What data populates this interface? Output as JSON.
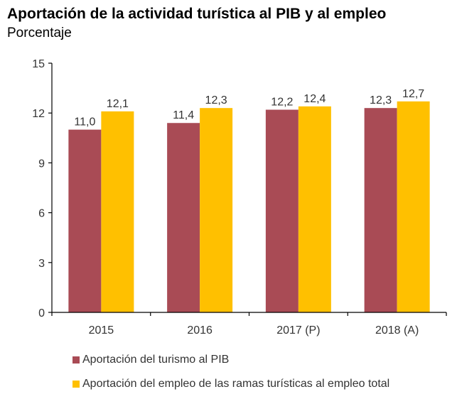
{
  "chart_data": {
    "type": "bar",
    "title": "Aportación de la actividad turística al PIB y al empleo",
    "subtitle": "Porcentaje",
    "xlabel": "",
    "ylabel": "",
    "categories": [
      "2015",
      "2016",
      "2017 (P)",
      "2018 (A)"
    ],
    "series": [
      {
        "name": "Aportación del turismo al PIB",
        "color": "#A94B55",
        "values": [
          11.0,
          11.4,
          12.2,
          12.3
        ],
        "labels": [
          "11,0",
          "11,4",
          "12,2",
          "12,3"
        ]
      },
      {
        "name": "Aportación del empleo de las ramas turísticas al empleo total",
        "color": "#FFC000",
        "values": [
          12.1,
          12.3,
          12.4,
          12.7
        ],
        "labels": [
          "12,1",
          "12,3",
          "12,4",
          "12,7"
        ]
      }
    ],
    "ylim": [
      0,
      15
    ],
    "yticks": [
      0,
      3,
      6,
      9,
      12,
      15
    ],
    "ytick_labels": [
      "0",
      "3",
      "6",
      "9",
      "12",
      "15"
    ],
    "grid": false,
    "legend_position": "bottom"
  }
}
